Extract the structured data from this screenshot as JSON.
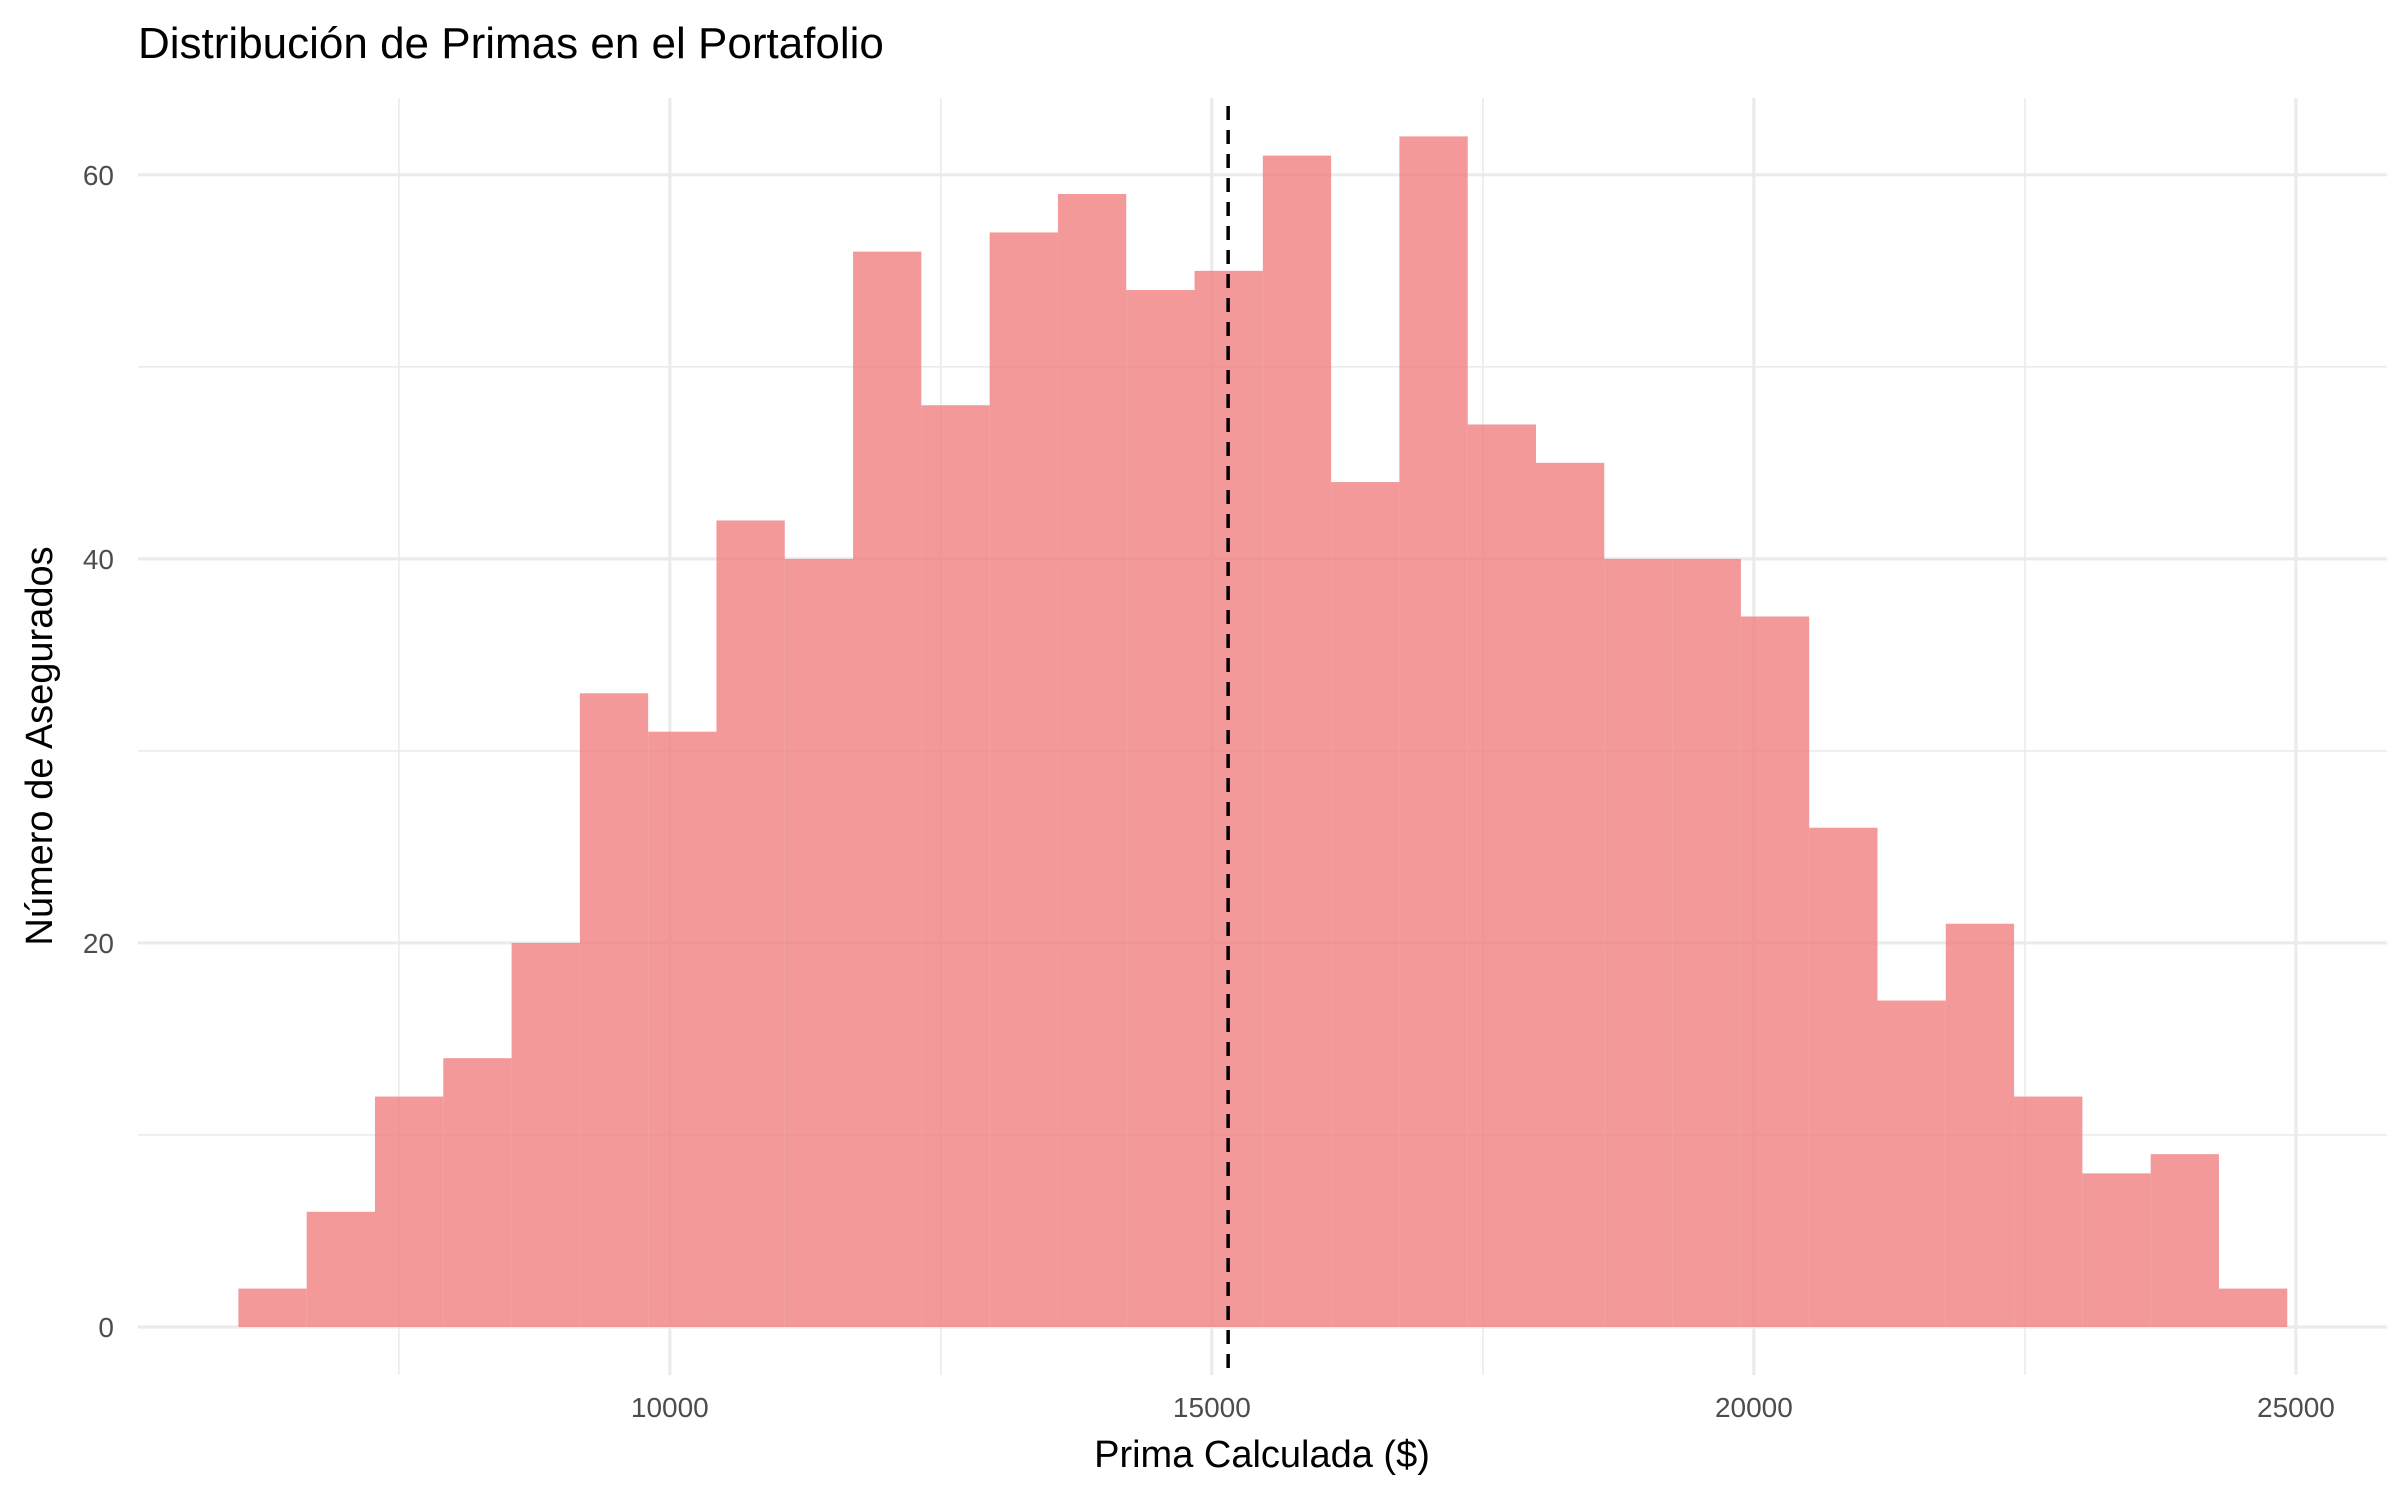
{
  "chart_data": {
    "type": "bar",
    "title": "Distribución de Primas en el Portafolio",
    "xlabel": "Prima Calculada ($)",
    "ylabel": "Número de Asegurados",
    "xlim": [
      5094,
      25840
    ],
    "ylim": [
      -2.5,
      64
    ],
    "x_ticks": [
      10000,
      15000,
      20000,
      25000
    ],
    "x_tick_labels": [
      "10000",
      "15000",
      "20000",
      "25000"
    ],
    "x_minor_ticks": [
      7500,
      12500,
      17500,
      22500
    ],
    "y_ticks": [
      0,
      20,
      40,
      60
    ],
    "y_tick_labels": [
      "0",
      "20",
      "40",
      "60"
    ],
    "y_minor_ticks": [
      10,
      30,
      50
    ],
    "grid": true,
    "bar_color": "#f08080",
    "reference_line": {
      "x": 15150,
      "style": "dashed",
      "color": "#000000"
    },
    "bins": [
      {
        "x0": 6020,
        "x1": 6650,
        "count": 2
      },
      {
        "x0": 6650,
        "x1": 7280,
        "count": 6
      },
      {
        "x0": 7280,
        "x1": 7910,
        "count": 12
      },
      {
        "x0": 7910,
        "x1": 8540,
        "count": 14
      },
      {
        "x0": 8540,
        "x1": 9170,
        "count": 20
      },
      {
        "x0": 9170,
        "x1": 9800,
        "count": 33
      },
      {
        "x0": 9800,
        "x1": 10430,
        "count": 31
      },
      {
        "x0": 10430,
        "x1": 11060,
        "count": 42
      },
      {
        "x0": 11060,
        "x1": 11690,
        "count": 40
      },
      {
        "x0": 11690,
        "x1": 12320,
        "count": 56
      },
      {
        "x0": 12320,
        "x1": 12950,
        "count": 48
      },
      {
        "x0": 12950,
        "x1": 13580,
        "count": 57
      },
      {
        "x0": 13580,
        "x1": 14210,
        "count": 59
      },
      {
        "x0": 14210,
        "x1": 14840,
        "count": 54
      },
      {
        "x0": 14840,
        "x1": 15470,
        "count": 55
      },
      {
        "x0": 15470,
        "x1": 16100,
        "count": 61
      },
      {
        "x0": 16100,
        "x1": 16730,
        "count": 44
      },
      {
        "x0": 16730,
        "x1": 17360,
        "count": 62
      },
      {
        "x0": 17360,
        "x1": 17990,
        "count": 47
      },
      {
        "x0": 17990,
        "x1": 18620,
        "count": 45
      },
      {
        "x0": 18620,
        "x1": 19250,
        "count": 40
      },
      {
        "x0": 19250,
        "x1": 19880,
        "count": 40
      },
      {
        "x0": 19880,
        "x1": 20510,
        "count": 37
      },
      {
        "x0": 20510,
        "x1": 21140,
        "count": 26
      },
      {
        "x0": 21140,
        "x1": 21770,
        "count": 17
      },
      {
        "x0": 21770,
        "x1": 22400,
        "count": 21
      },
      {
        "x0": 22400,
        "x1": 23030,
        "count": 12
      },
      {
        "x0": 23030,
        "x1": 23660,
        "count": 8
      },
      {
        "x0": 23660,
        "x1": 24290,
        "count": 9
      },
      {
        "x0": 24290,
        "x1": 24920,
        "count": 2
      }
    ]
  }
}
